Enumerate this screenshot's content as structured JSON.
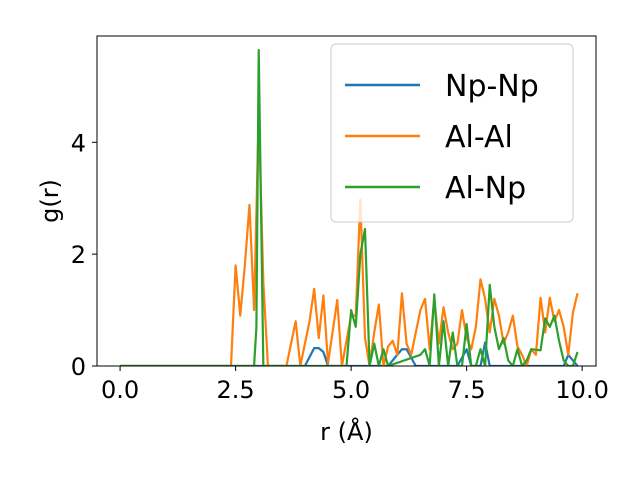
{
  "chart_data": {
    "type": "line",
    "xlabel": "r (Å)",
    "ylabel": "g(r)",
    "xlim": [
      -0.5,
      10.3
    ],
    "ylim": [
      0,
      5.9
    ],
    "xticks": [
      0.0,
      2.5,
      5.0,
      7.5,
      10.0
    ],
    "xtick_labels": [
      "0.0",
      "2.5",
      "5.0",
      "7.5",
      "10.0"
    ],
    "yticks": [
      0,
      2,
      4
    ],
    "ytick_labels": [
      "0",
      "2",
      "4"
    ],
    "grid": false,
    "legend_position": "top-right",
    "series": [
      {
        "name": "Np-Np",
        "color": "#1f77b4",
        "points": [
          [
            0.0,
            0
          ],
          [
            4.0,
            0
          ],
          [
            4.2,
            0.32
          ],
          [
            4.3,
            0.32
          ],
          [
            4.4,
            0.25
          ],
          [
            4.5,
            0
          ],
          [
            5.8,
            0
          ],
          [
            6.1,
            0.3
          ],
          [
            6.2,
            0.3
          ],
          [
            6.4,
            0
          ],
          [
            7.3,
            0
          ],
          [
            7.5,
            0.3
          ],
          [
            7.6,
            0
          ],
          [
            7.8,
            0
          ],
          [
            7.9,
            0.42
          ],
          [
            8.0,
            0
          ],
          [
            9.6,
            0
          ],
          [
            9.7,
            0.2
          ],
          [
            9.9,
            0
          ]
        ]
      },
      {
        "name": "Al-Al",
        "color": "#ff7f0e",
        "points": [
          [
            0.0,
            0
          ],
          [
            2.4,
            0
          ],
          [
            2.5,
            1.8
          ],
          [
            2.6,
            0.9
          ],
          [
            2.7,
            1.8
          ],
          [
            2.8,
            2.88
          ],
          [
            2.9,
            1.0
          ],
          [
            3.0,
            4.5
          ],
          [
            3.1,
            1.5
          ],
          [
            3.2,
            0
          ],
          [
            3.6,
            0
          ],
          [
            3.8,
            0.8
          ],
          [
            3.9,
            0
          ],
          [
            4.1,
            0.8
          ],
          [
            4.2,
            1.38
          ],
          [
            4.3,
            0.5
          ],
          [
            4.4,
            1.26
          ],
          [
            4.5,
            0.05
          ],
          [
            4.7,
            1.18
          ],
          [
            4.8,
            0
          ],
          [
            5.0,
            0.9
          ],
          [
            5.1,
            0.9
          ],
          [
            5.2,
            2.98
          ],
          [
            5.3,
            0.5
          ],
          [
            5.4,
            0
          ],
          [
            5.5,
            0.6
          ],
          [
            5.6,
            1.1
          ],
          [
            5.7,
            0
          ],
          [
            5.8,
            0.35
          ],
          [
            5.9,
            0.45
          ],
          [
            6.0,
            0.2
          ],
          [
            6.1,
            1.3
          ],
          [
            6.2,
            0.4
          ],
          [
            6.3,
            0.2
          ],
          [
            6.5,
            1.0
          ],
          [
            6.6,
            1.2
          ],
          [
            6.7,
            0.3
          ],
          [
            6.8,
            1.2
          ],
          [
            6.9,
            0.4
          ],
          [
            7.0,
            1.05
          ],
          [
            7.1,
            0.6
          ],
          [
            7.2,
            0.3
          ],
          [
            7.3,
            0.4
          ],
          [
            7.4,
            1.0
          ],
          [
            7.5,
            0.5
          ],
          [
            7.6,
            0.3
          ],
          [
            7.7,
            0.7
          ],
          [
            7.8,
            1.55
          ],
          [
            7.9,
            1.2
          ],
          [
            8.0,
            0.6
          ],
          [
            8.1,
            1.2
          ],
          [
            8.2,
            0.9
          ],
          [
            8.3,
            0.4
          ],
          [
            8.4,
            0.6
          ],
          [
            8.5,
            0.9
          ],
          [
            8.6,
            0.35
          ],
          [
            8.7,
            0.2
          ],
          [
            8.8,
            0
          ],
          [
            8.9,
            0.3
          ],
          [
            9.0,
            0.2
          ],
          [
            9.1,
            1.22
          ],
          [
            9.2,
            0.6
          ],
          [
            9.3,
            1.22
          ],
          [
            9.4,
            0.8
          ],
          [
            9.5,
            1.0
          ],
          [
            9.6,
            0.7
          ],
          [
            9.7,
            0.2
          ],
          [
            9.8,
            0.95
          ],
          [
            9.9,
            1.3
          ]
        ]
      },
      {
        "name": "Al-Np",
        "color": "#2ca02c",
        "points": [
          [
            0.0,
            0
          ],
          [
            2.9,
            0
          ],
          [
            2.95,
            0.7
          ],
          [
            3.0,
            5.65
          ],
          [
            3.1,
            0
          ],
          [
            4.9,
            0
          ],
          [
            5.0,
            1.0
          ],
          [
            5.1,
            0.7
          ],
          [
            5.2,
            2.0
          ],
          [
            5.3,
            2.45
          ],
          [
            5.4,
            0
          ],
          [
            5.5,
            0.4
          ],
          [
            5.6,
            0
          ],
          [
            5.7,
            0.3
          ],
          [
            5.8,
            0
          ],
          [
            6.5,
            0.2
          ],
          [
            6.6,
            0.3
          ],
          [
            6.7,
            0
          ],
          [
            6.8,
            1.28
          ],
          [
            6.9,
            0
          ],
          [
            7.0,
            0.8
          ],
          [
            7.1,
            0
          ],
          [
            7.2,
            0.6
          ],
          [
            7.3,
            0
          ],
          [
            7.4,
            0
          ],
          [
            7.5,
            0.75
          ],
          [
            7.6,
            0
          ],
          [
            7.7,
            0
          ],
          [
            7.8,
            0.3
          ],
          [
            7.9,
            0
          ],
          [
            8.0,
            1.45
          ],
          [
            8.1,
            0.7
          ],
          [
            8.2,
            0.3
          ],
          [
            8.3,
            0.5
          ],
          [
            8.4,
            0.1
          ],
          [
            8.5,
            0
          ],
          [
            8.6,
            0.3
          ],
          [
            8.7,
            0
          ],
          [
            8.8,
            0.1
          ],
          [
            8.9,
            0.3
          ],
          [
            9.1,
            0.28
          ],
          [
            9.2,
            0.85
          ],
          [
            9.3,
            0.7
          ],
          [
            9.4,
            0.9
          ],
          [
            9.5,
            0.45
          ],
          [
            9.6,
            0.1
          ],
          [
            9.7,
            0
          ],
          [
            9.8,
            0
          ],
          [
            9.9,
            0.25
          ]
        ]
      }
    ]
  }
}
